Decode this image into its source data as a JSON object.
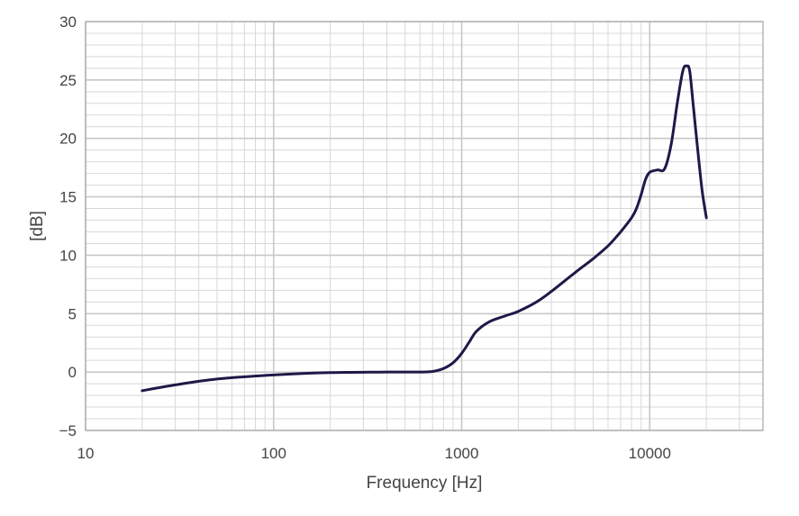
{
  "chart_data": {
    "type": "line",
    "xlabel": "Frequency [Hz]",
    "ylabel": "[dB]",
    "xscale": "log",
    "xlim": [
      10,
      40000
    ],
    "ylim": [
      -5,
      30
    ],
    "x_ticks": [
      10,
      100,
      1000,
      10000
    ],
    "x_tick_labels": [
      "10",
      "100",
      "1000",
      "10000"
    ],
    "y_ticks": [
      -5,
      0,
      5,
      10,
      15,
      20,
      25,
      30
    ],
    "y_tick_labels": [
      "−5",
      "0",
      "5",
      "10",
      "15",
      "20",
      "25",
      "30"
    ],
    "grid": true,
    "line_color": "#1f1848",
    "grid_color": "#c8c8c8",
    "series": [
      {
        "x": [
          20,
          30,
          50,
          100,
          200,
          400,
          600,
          700,
          800,
          900,
          1000,
          1100,
          1200,
          1400,
          1700,
          2000,
          2500,
          3000,
          4000,
          5000,
          6000,
          7000,
          8000,
          8500,
          9000,
          9500,
          10000,
          11000,
          12000,
          13000,
          14000,
          15000,
          15700,
          16300,
          17000,
          18000,
          19000,
          20000
        ],
        "y": [
          -1.6,
          -1.1,
          -0.6,
          -0.25,
          -0.05,
          0.0,
          0.0,
          0.05,
          0.3,
          0.8,
          1.6,
          2.6,
          3.5,
          4.3,
          4.8,
          5.2,
          6.0,
          6.9,
          8.5,
          9.7,
          10.8,
          12.0,
          13.2,
          14.0,
          15.2,
          16.5,
          17.1,
          17.3,
          17.4,
          19.5,
          23.0,
          25.8,
          26.2,
          25.8,
          23.0,
          19.0,
          15.5,
          13.2
        ]
      }
    ]
  }
}
